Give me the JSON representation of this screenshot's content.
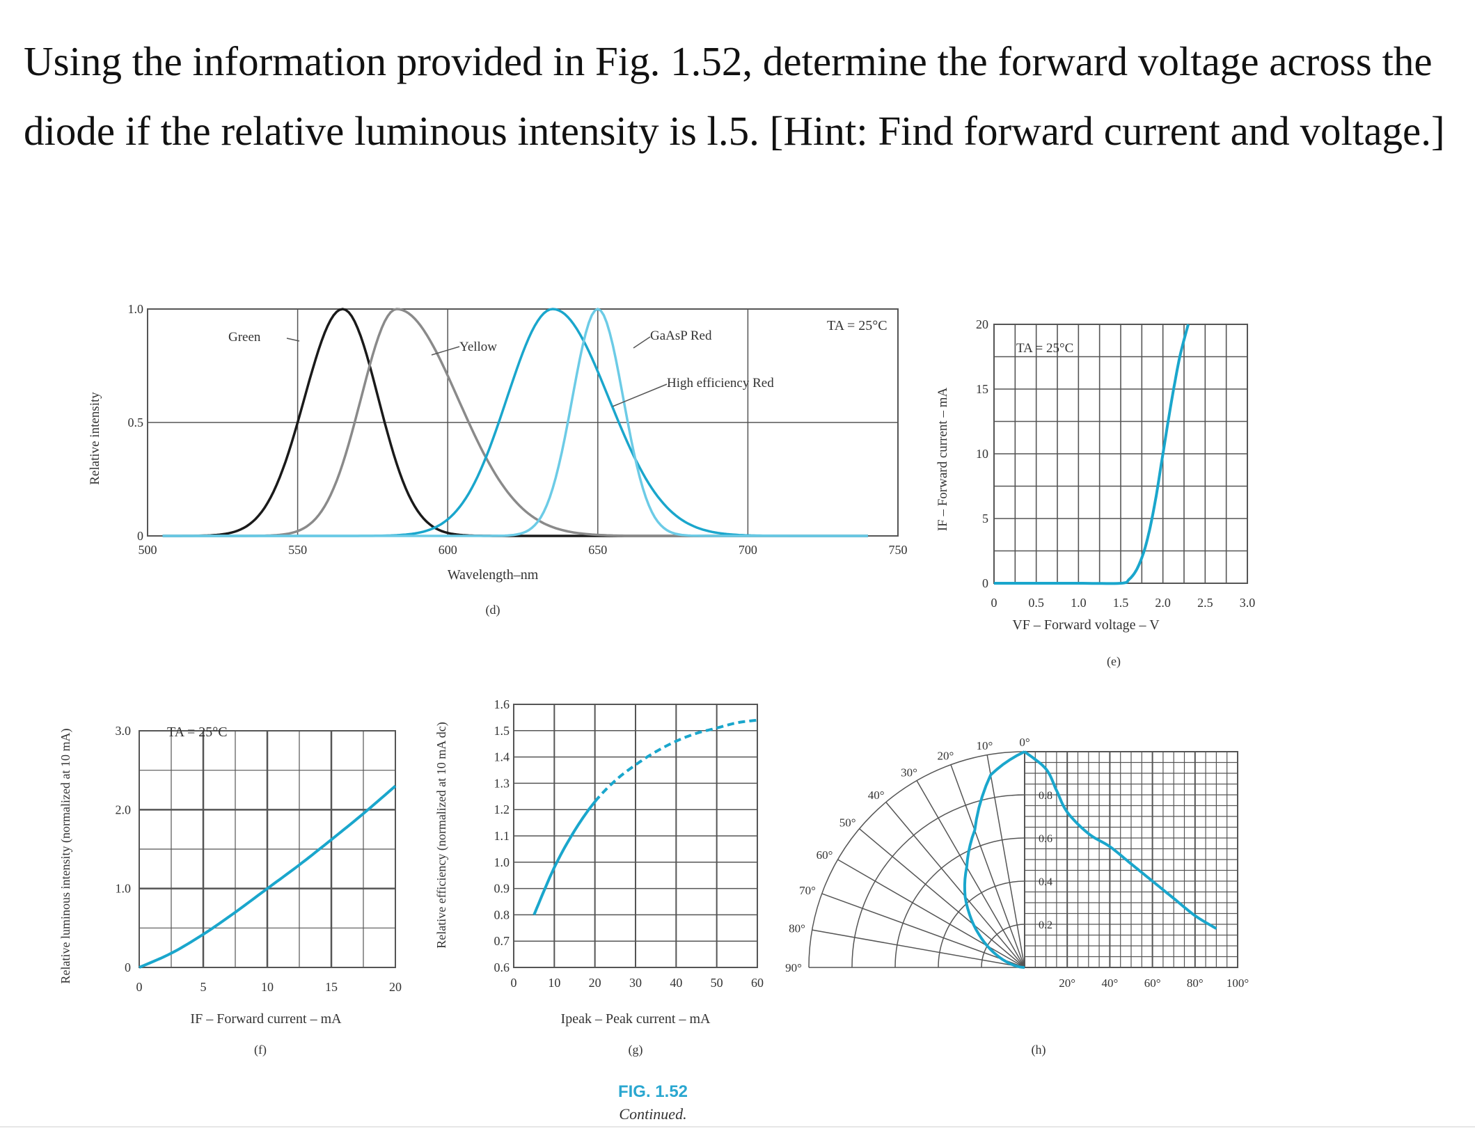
{
  "question": {
    "line1": "Using the information provided in Fig. 1.52, determine the forward voltage across the",
    "line2": "diode if the relative luminous intensity is l.5.  [Hint: Find forward current and voltage.]"
  },
  "figure": {
    "caption": "FIG. 1.52",
    "continued": "Continued."
  },
  "colors": {
    "blue": "#1aa6cc",
    "light_blue": "#6ccbe6",
    "black": "#1a1a1a",
    "gray": "#8a8a8a",
    "grid": "#555555"
  },
  "chart_data": [
    {
      "id": "d",
      "type": "line",
      "panel_label": "(d)",
      "xlabel": "Wavelength–nm",
      "ylabel": "Relative intensity",
      "annotation": "TA = 25°C",
      "x_ticks": [
        "500",
        "550",
        "600",
        "650",
        "700",
        "750"
      ],
      "y_ticks": [
        "0",
        "0.5",
        "1.0"
      ],
      "xlim": [
        500,
        750
      ],
      "ylim": [
        0,
        1
      ],
      "series": [
        {
          "name": "Green",
          "color": "#1a1a1a",
          "peak": 565,
          "fwhm_left": 15,
          "fwhm_right": 14
        },
        {
          "name": "Yellow",
          "color": "#8a8a8a",
          "peak": 583,
          "fwhm_left": 14,
          "fwhm_right": 24
        },
        {
          "name": "High efficiency Red",
          "color": "#1aa6cc",
          "peak": 635,
          "fwhm_left": 18,
          "fwhm_right": 22
        },
        {
          "name": "GaAsP Red",
          "color": "#6ccbe6",
          "peak": 650,
          "fwhm_left": 10,
          "fwhm_right": 10
        }
      ]
    },
    {
      "id": "e",
      "type": "line",
      "panel_label": "(e)",
      "xlabel": "VF – Forward voltage – V",
      "ylabel": "IF – Forward current – mA",
      "annotation": "TA = 25°C",
      "x_ticks": [
        "0",
        "0.5",
        "1.0",
        "1.5",
        "2.0",
        "2.5",
        "3.0"
      ],
      "y_ticks": [
        "0",
        "5",
        "10",
        "15",
        "20"
      ],
      "xlim": [
        0,
        3.0
      ],
      "ylim": [
        0,
        20
      ],
      "x": [
        0,
        0.5,
        1.0,
        1.5,
        1.6,
        1.7,
        1.8,
        1.9,
        2.0,
        2.1,
        2.2,
        2.3
      ],
      "y": [
        0,
        0,
        0,
        0,
        0.3,
        1.2,
        3,
        6,
        10,
        14,
        17.5,
        20
      ]
    },
    {
      "id": "f",
      "type": "line",
      "panel_label": "(f)",
      "xlabel": "IF – Forward current – mA",
      "ylabel": "Relative luminous intensity (normalized at 10 mA)",
      "annotation": "TA = 25°C",
      "x_ticks": [
        "0",
        "5",
        "10",
        "15",
        "20"
      ],
      "y_ticks": [
        "0",
        "1.0",
        "2.0",
        "3.0"
      ],
      "xlim": [
        0,
        20
      ],
      "ylim": [
        0,
        3.0
      ],
      "x": [
        0,
        2.5,
        5,
        7.5,
        10,
        12.5,
        15,
        17.5,
        20
      ],
      "y": [
        0,
        0.18,
        0.42,
        0.7,
        1.0,
        1.3,
        1.62,
        1.95,
        2.3
      ]
    },
    {
      "id": "g",
      "type": "line",
      "panel_label": "(g)",
      "xlabel": "Ipeak – Peak current – mA",
      "ylabel": "Relative efficiency (normalized at 10 mA dc)",
      "x_ticks": [
        "0",
        "10",
        "20",
        "30",
        "40",
        "50",
        "60"
      ],
      "y_ticks": [
        "0.6",
        "0.7",
        "0.8",
        "0.9",
        "1.0",
        "1.1",
        "1.2",
        "1.3",
        "1.4",
        "1.5",
        "1.6"
      ],
      "xlim": [
        0,
        60
      ],
      "ylim": [
        0.6,
        1.6
      ],
      "x": [
        5,
        10,
        15,
        20,
        25,
        30,
        35,
        40,
        45,
        50,
        55,
        60
      ],
      "y": [
        0.8,
        0.98,
        1.12,
        1.23,
        1.31,
        1.37,
        1.42,
        1.46,
        1.49,
        1.51,
        1.53,
        1.54
      ],
      "dashed_from_x": 20
    },
    {
      "id": "h",
      "type": "line",
      "panel_label": "(h)",
      "angle_ticks": [
        "0°",
        "10°",
        "20°",
        "30°",
        "40°",
        "50°",
        "60°",
        "70°",
        "80°",
        "90°"
      ],
      "x_ticks": [
        "20°",
        "40°",
        "60°",
        "80°",
        "100°"
      ],
      "y_ticks": [
        "0.2",
        "0.4",
        "0.6",
        "0.8"
      ],
      "xlim": [
        0,
        100
      ],
      "ylim": [
        0,
        1.0
      ],
      "x": [
        0,
        10,
        15,
        20,
        30,
        40,
        50,
        60,
        70,
        80,
        90
      ],
      "y": [
        1.0,
        0.92,
        0.82,
        0.72,
        0.62,
        0.56,
        0.48,
        0.4,
        0.32,
        0.24,
        0.18
      ]
    }
  ]
}
